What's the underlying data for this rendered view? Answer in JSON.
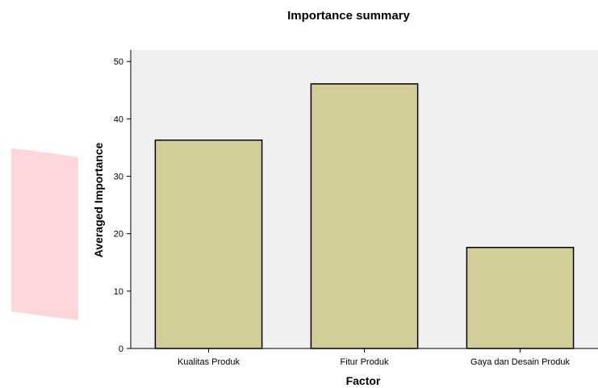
{
  "chart_data": {
    "type": "bar",
    "title": "Importance summary",
    "xlabel": "Factor",
    "ylabel": "Averaged Importance",
    "categories": [
      "Kualitas Produk",
      "Fitur Produk",
      "Gaya dan Desain Produk"
    ],
    "values": [
      36.3,
      46.1,
      17.6
    ],
    "ylim": [
      0,
      52
    ],
    "yticks": [
      0,
      10,
      20,
      30,
      40,
      50
    ],
    "grid": false,
    "legend": "none"
  },
  "colors": {
    "plot_background": "#f0f0f0",
    "bar_fill": "#d3ce98",
    "bar_stroke": "#000000",
    "watermark": "#ffd6d9"
  }
}
